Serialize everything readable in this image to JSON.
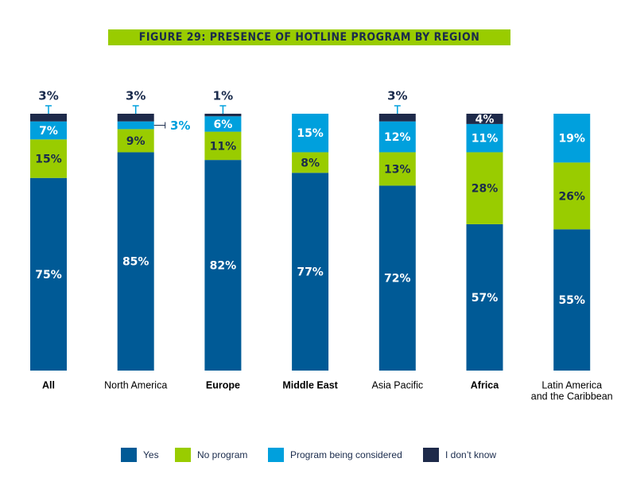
{
  "title": "FIGURE 29: PRESENCE OF HOTLINE PROGRAM BY REGION",
  "colors": {
    "yes": "#005a96",
    "no_program": "#99cc00",
    "considered": "#00a0dd",
    "dont_know": "#1e2a4a",
    "label_light": "#ffffff",
    "label_dark": "#1a2b4c"
  },
  "chart_data": {
    "type": "bar",
    "stacked": true,
    "categories": [
      "All",
      "North America",
      "Europe",
      "Middle East",
      "Asia Pacific",
      "Africa",
      "Latin America\nand the Caribbean"
    ],
    "series": [
      {
        "name": "Yes",
        "values": [
          75,
          85,
          82,
          77,
          72,
          57,
          55
        ],
        "labels": [
          "75%",
          "85%",
          "82%",
          "77%",
          "72%",
          "57%",
          "55%"
        ]
      },
      {
        "name": "No program",
        "values": [
          15,
          9,
          11,
          8,
          13,
          28,
          26
        ],
        "labels": [
          "15%",
          "9%",
          "11%",
          "8%",
          "13%",
          "28%",
          "26%"
        ]
      },
      {
        "name": "Program being considered",
        "values": [
          7,
          3,
          6,
          15,
          12,
          11,
          19
        ],
        "labels": [
          "7%",
          "3%",
          "6%",
          "15%",
          "12%",
          "11%",
          "19%"
        ]
      },
      {
        "name": "I don’t know",
        "values": [
          3,
          3,
          1,
          0,
          3,
          4,
          0
        ],
        "labels": [
          "3%",
          "3%",
          "1%",
          "",
          "3%",
          "4%",
          ""
        ]
      }
    ],
    "ylim": [
      0,
      100
    ],
    "legend_position": "bottom"
  },
  "legend": [
    {
      "label": "Yes",
      "color_key": "yes"
    },
    {
      "label": "No program",
      "color_key": "no_program"
    },
    {
      "label": "Program being considered",
      "color_key": "considered"
    },
    {
      "label": "I don’t know",
      "color_key": "dont_know"
    }
  ]
}
